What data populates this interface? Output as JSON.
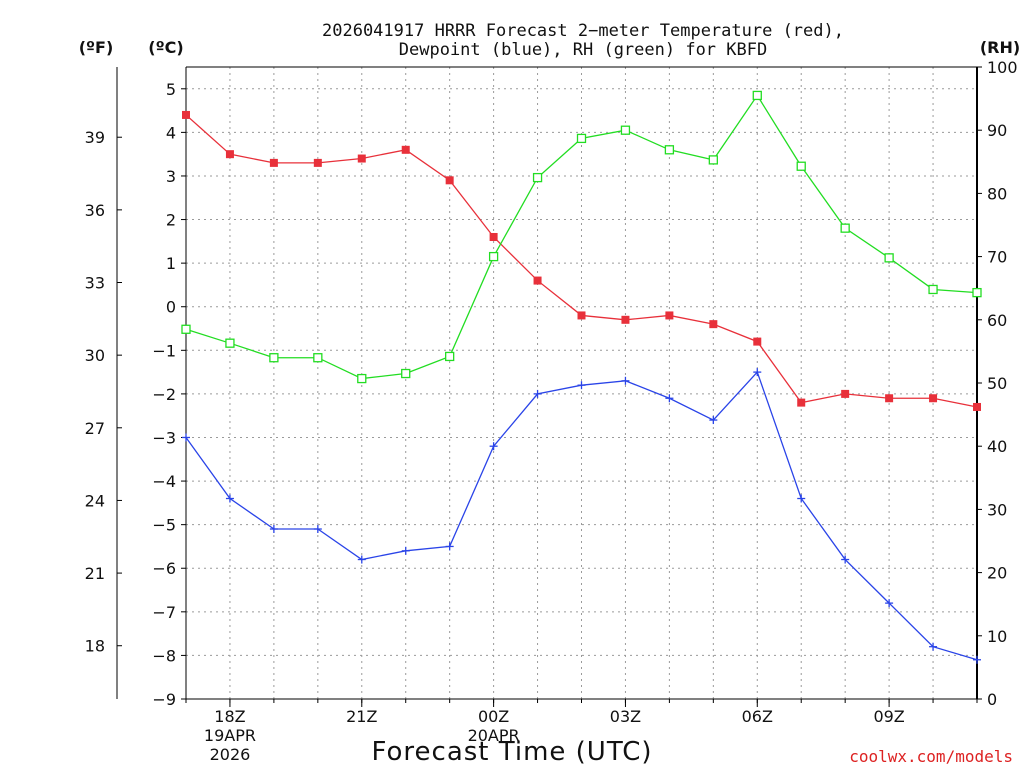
{
  "chart_data": {
    "type": "line",
    "title_line1": "2026041917 HRRR Forecast 2−meter Temperature (red),",
    "title_line2": "Dewpoint (blue), RH (green) for KBFD",
    "xlabel": "Forecast Time (UTC)",
    "watermark": "coolwx.com/models",
    "left_axis_f_unit": "(ºF)",
    "left_axis_c_unit": "(ºC)",
    "right_axis_unit": "(RH)",
    "hours": [
      0,
      1,
      2,
      3,
      4,
      5,
      6,
      7,
      8,
      9,
      10,
      11,
      12,
      13,
      14,
      15,
      16,
      17,
      18
    ],
    "celsius_ticks": [
      "5",
      "4",
      "3",
      "2",
      "1",
      "0",
      "−1",
      "−2",
      "−3",
      "−4",
      "−5",
      "−6",
      "−7",
      "−8",
      "−9"
    ],
    "fahrenheit_ticks": [
      "39",
      "36",
      "33",
      "30",
      "27",
      "24",
      "21",
      "18"
    ],
    "rh_ticks": [
      "100",
      "90",
      "80",
      "70",
      "60",
      "50",
      "40",
      "30",
      "20",
      "10",
      "0"
    ],
    "x_ticks": [
      {
        "label": "18Z",
        "sub1": "19APR",
        "sub2": "2026"
      },
      {
        "label": "21Z",
        "sub1": "",
        "sub2": ""
      },
      {
        "label": "00Z",
        "sub1": "20APR",
        "sub2": ""
      },
      {
        "label": "03Z",
        "sub1": "",
        "sub2": ""
      },
      {
        "label": "06Z",
        "sub1": "",
        "sub2": ""
      },
      {
        "label": "09Z",
        "sub1": "",
        "sub2": ""
      }
    ],
    "ylim_celsius": [
      -9,
      5.5
    ],
    "ylim_rh": [
      0,
      100
    ],
    "series": [
      {
        "name": "Temperature",
        "color": "#e8303a",
        "axis": "celsius",
        "marker": "filled-square",
        "values": [
          4.4,
          3.5,
          3.3,
          3.3,
          3.4,
          3.6,
          2.9,
          1.6,
          0.6,
          -0.2,
          -0.3,
          -0.2,
          -0.4,
          -0.8,
          -2.2,
          -2.0,
          -2.1,
          -2.1,
          -2.3
        ]
      },
      {
        "name": "Dewpoint",
        "color": "#2a44e8",
        "axis": "celsius",
        "marker": "plus",
        "values": [
          -3.0,
          -4.4,
          -5.1,
          -5.1,
          -5.8,
          -5.6,
          -5.5,
          -3.2,
          -2.0,
          -1.8,
          -1.7,
          -2.1,
          -2.6,
          -1.5,
          -4.4,
          -5.8,
          -6.8,
          -7.8,
          -8.1
        ]
      },
      {
        "name": "RH",
        "color": "#22dd22",
        "axis": "rh",
        "marker": "open-square",
        "values": [
          58.5,
          56.3,
          54.0,
          54.0,
          50.7,
          51.5,
          54.2,
          70.0,
          82.5,
          88.7,
          90.0,
          86.9,
          85.3,
          95.5,
          84.3,
          74.5,
          69.8,
          64.8,
          64.3
        ]
      }
    ]
  }
}
